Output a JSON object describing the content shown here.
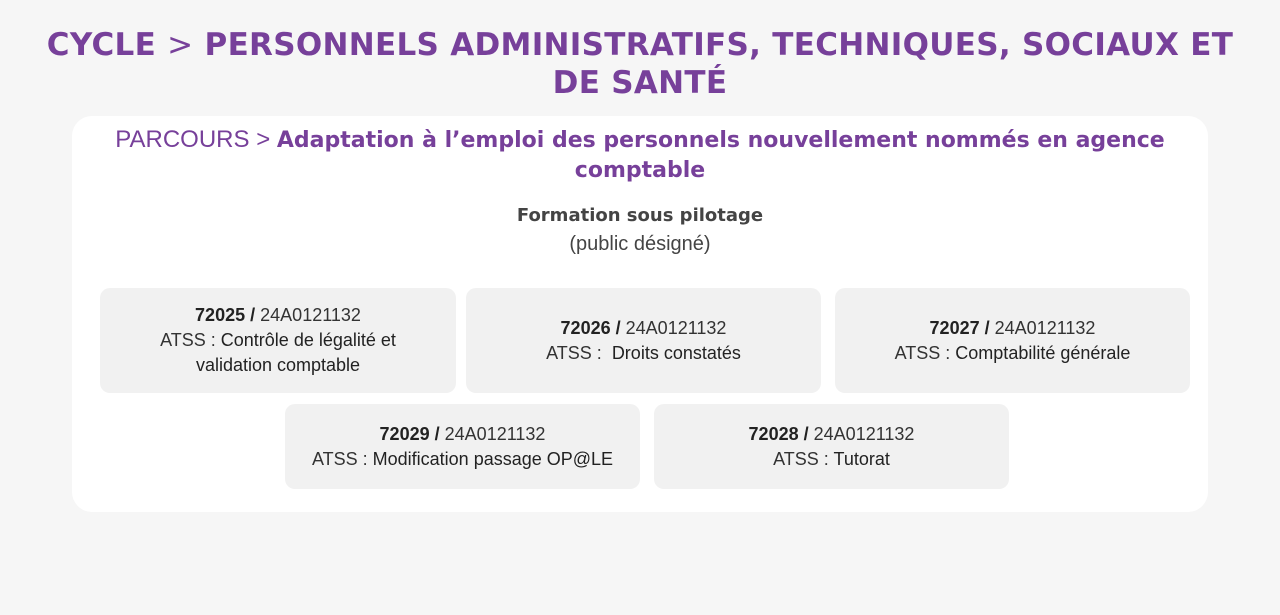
{
  "header": {
    "cycle_label": "CYCLE",
    "separator": ">",
    "cycle_title": "PERSONNELS ADMINISTRATIFS, TECHNIQUES, SOCIAUX ET DE SANTÉ"
  },
  "parcours": {
    "label": "PARCOURS",
    "separator": ">",
    "title": "Adaptation à l’emploi des personnels nouvellement nommés en agence comptable"
  },
  "formation": {
    "type": "Formation sous pilotage",
    "public": "(public désigné)"
  },
  "modules": [
    {
      "code": "72025",
      "ref": "24A0121132",
      "prefix": "ATSS :",
      "title": "Contrôle de légalité et validation comptable"
    },
    {
      "code": "72026",
      "ref": "24A0121132",
      "prefix": "ATSS :",
      "title": "Droits constatés"
    },
    {
      "code": "72027",
      "ref": "24A0121132",
      "prefix": "ATSS :",
      "title": "Comptabilité générale"
    },
    {
      "code": "72029",
      "ref": "24A0121132",
      "prefix": "ATSS :",
      "title": "Modification passage OP@LE"
    },
    {
      "code": "72028",
      "ref": "24A0121132",
      "prefix": "ATSS :",
      "title": "Tutorat"
    }
  ],
  "code_separator": "/",
  "colors": {
    "accent": "#77409a",
    "page_background": "#f6f6f6",
    "card_background": "#ffffff",
    "module_background": "#f1f1f1"
  }
}
